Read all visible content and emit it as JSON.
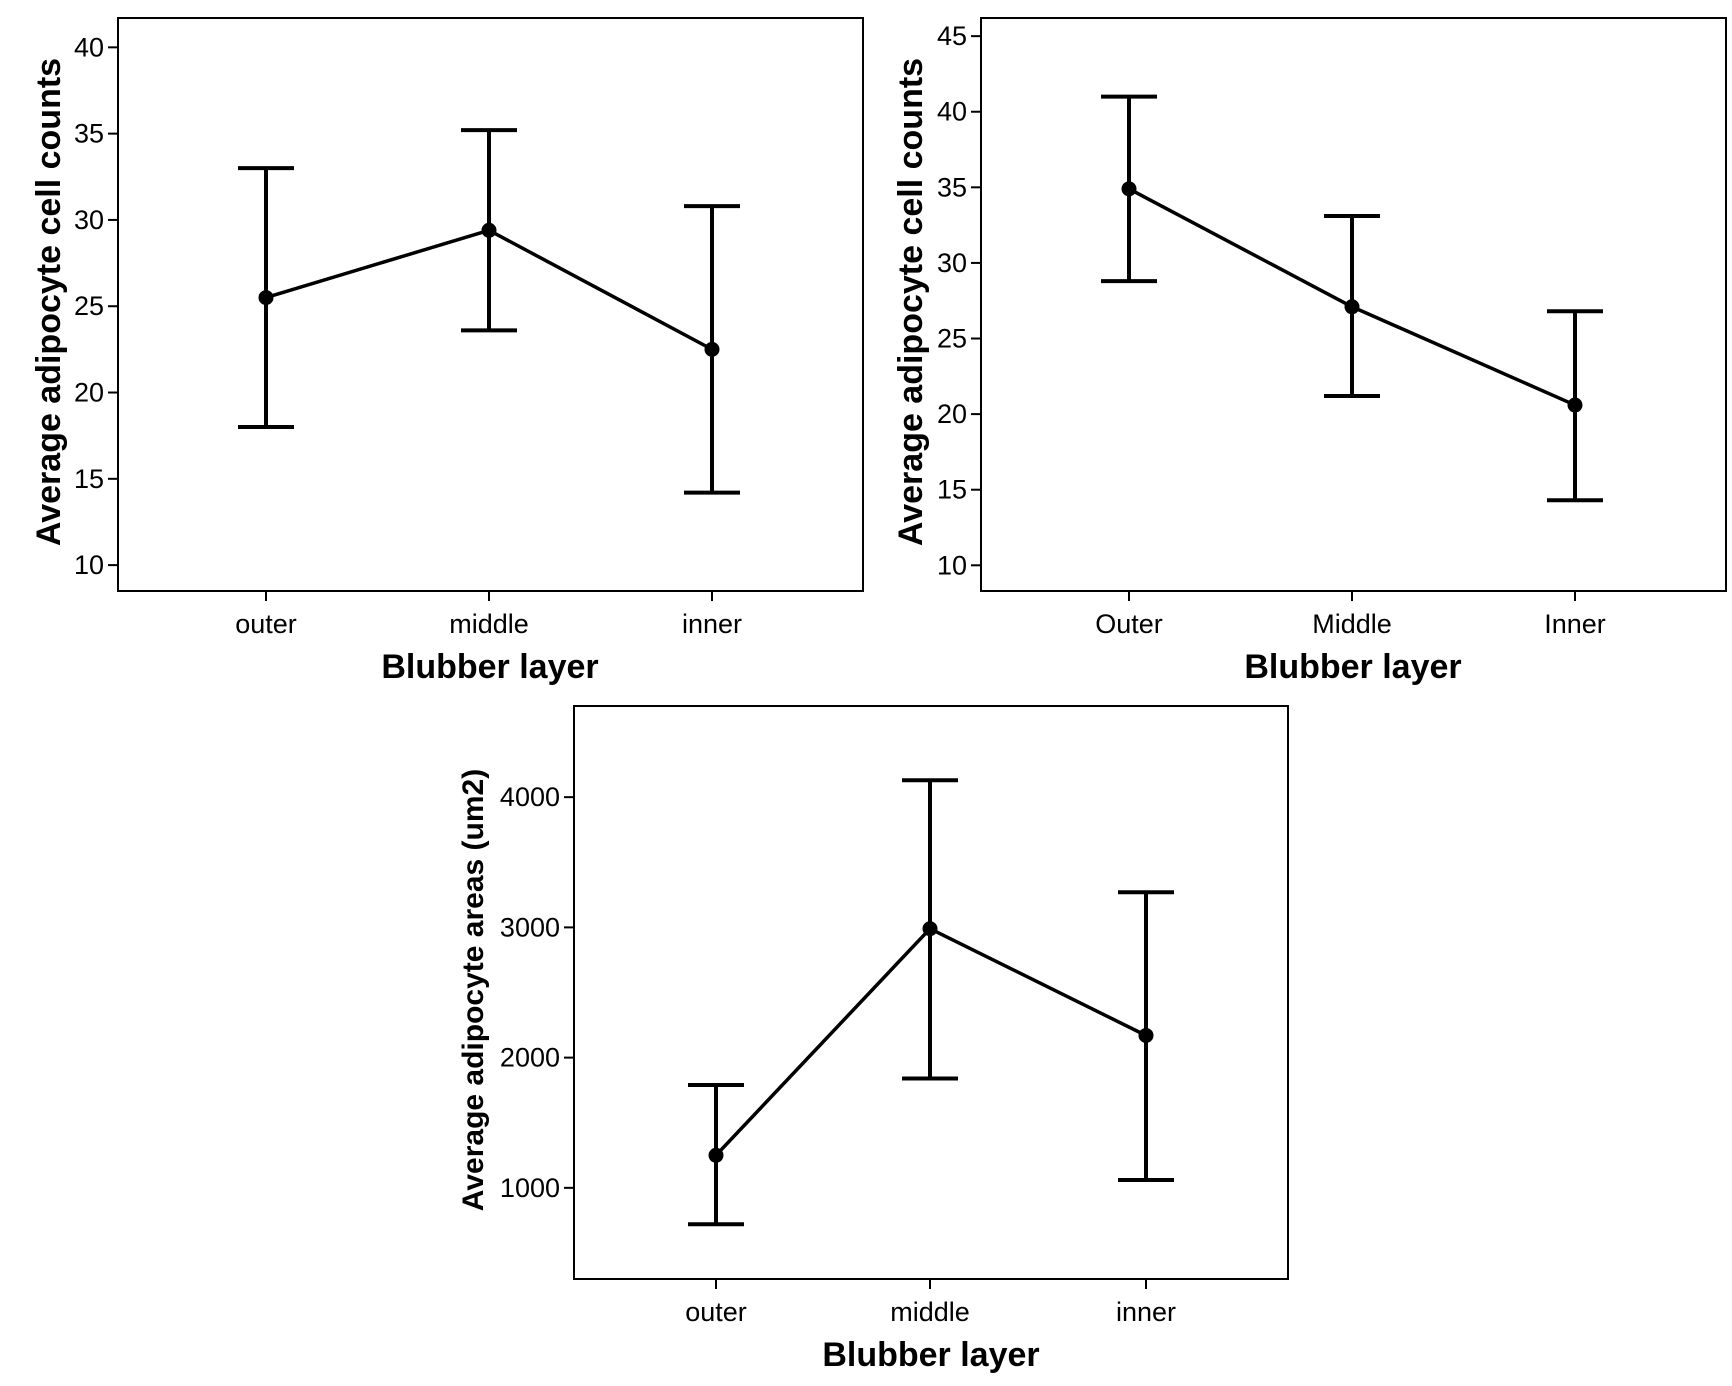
{
  "colors": {
    "line": "#000000",
    "background": "#ffffff"
  },
  "chart_data": [
    {
      "type": "line",
      "error_bars": true,
      "categories": [
        "outer",
        "middle",
        "inner"
      ],
      "values": [
        25.5,
        29.4,
        22.5
      ],
      "error_low": [
        18.0,
        23.6,
        14.2
      ],
      "error_high": [
        33.0,
        35.2,
        30.8
      ],
      "xlabel": "Blubber layer",
      "ylabel": "Average adipocyte cell counts",
      "ylim": [
        8.5,
        41.7
      ],
      "yticks": [
        10,
        15,
        20,
        25,
        30,
        35,
        40
      ],
      "grid": false
    },
    {
      "type": "line",
      "error_bars": true,
      "categories": [
        "Outer",
        "Middle",
        "Inner"
      ],
      "values": [
        34.9,
        27.1,
        20.6
      ],
      "error_low": [
        28.8,
        21.2,
        14.3
      ],
      "error_high": [
        41.0,
        33.1,
        26.8
      ],
      "xlabel": "Blubber layer",
      "ylabel": "Average adipocyte cell counts",
      "ylim": [
        8.3,
        46.2
      ],
      "yticks": [
        10,
        15,
        20,
        25,
        30,
        35,
        40,
        45
      ],
      "grid": false
    },
    {
      "type": "line",
      "error_bars": true,
      "categories": [
        "outer",
        "middle",
        "inner"
      ],
      "values": [
        1250,
        2990,
        2170
      ],
      "error_low": [
        720,
        1840,
        1060
      ],
      "error_high": [
        1790,
        4130,
        3270
      ],
      "xlabel": "Blubber layer",
      "ylabel": "Average adipocyte areas (um2)",
      "ylim": [
        300,
        4700
      ],
      "yticks": [
        1000,
        2000,
        3000,
        4000
      ],
      "grid": false
    }
  ]
}
